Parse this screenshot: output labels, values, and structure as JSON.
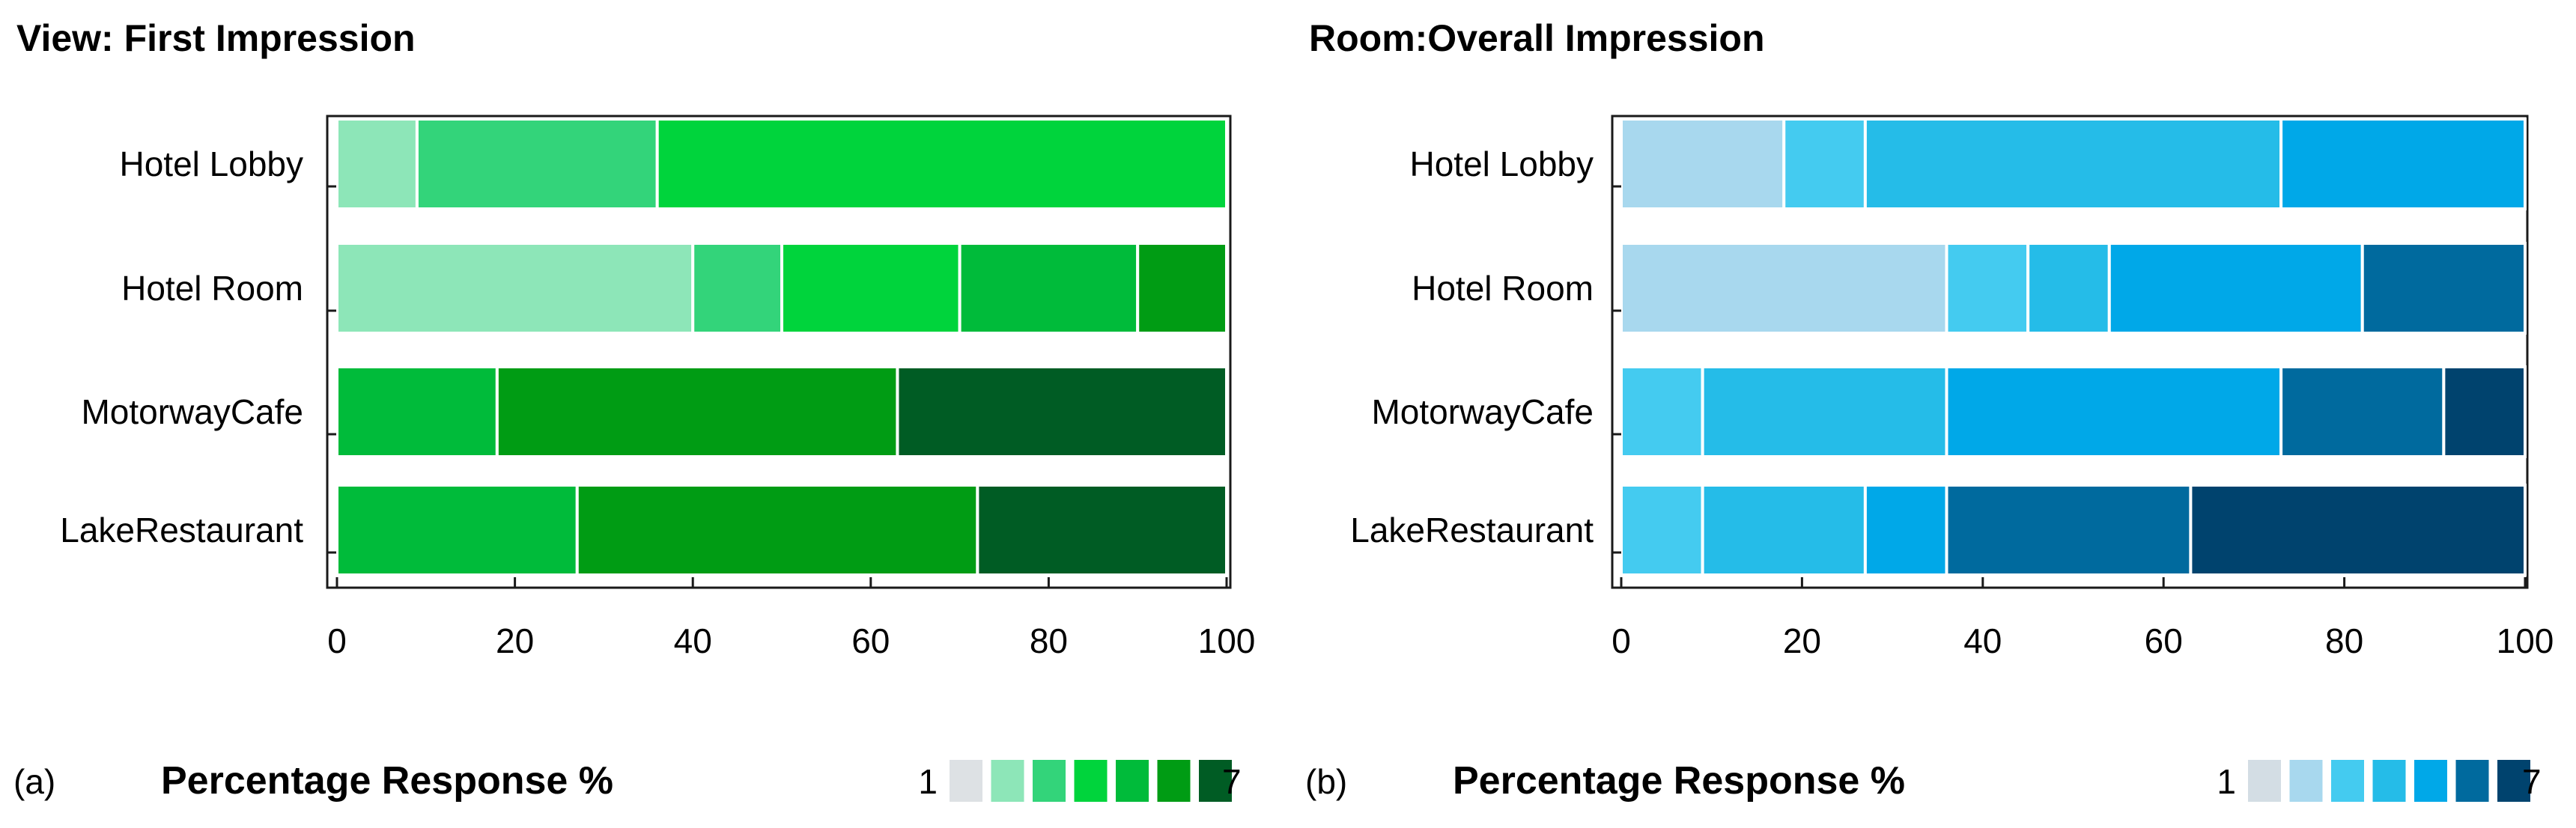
{
  "chart_data": [
    {
      "type": "bar",
      "orientation": "horizontal",
      "stacked": true,
      "title": "View: First Impression",
      "panel_label": "(a)",
      "xlabel": "Percentage Response %",
      "xlim": [
        0,
        100
      ],
      "xticks": [
        "0",
        "20",
        "40",
        "60",
        "80",
        "100"
      ],
      "categories": [
        "Hotel Lobby",
        "Hotel Room",
        "MotorwayCafe",
        "LakeRestaurant"
      ],
      "legend": {
        "low_label": "1",
        "high_label": "7",
        "position": "bottom-right"
      },
      "colors": [
        "#dde1e4",
        "#8de6b8",
        "#33d47a",
        "#00d43c",
        "#00bb3a",
        "#009c14",
        "#005c24"
      ],
      "series": [
        {
          "name": "1",
          "values": [
            0,
            0,
            0,
            0
          ]
        },
        {
          "name": "2",
          "values": [
            9,
            40,
            0,
            0
          ]
        },
        {
          "name": "3",
          "values": [
            27,
            10,
            0,
            0
          ]
        },
        {
          "name": "4",
          "values": [
            64,
            20,
            0,
            0
          ]
        },
        {
          "name": "5",
          "values": [
            0,
            20,
            18,
            27
          ]
        },
        {
          "name": "6",
          "values": [
            0,
            10,
            45,
            45
          ]
        },
        {
          "name": "7",
          "values": [
            0,
            0,
            37,
            28
          ]
        }
      ]
    },
    {
      "type": "bar",
      "orientation": "horizontal",
      "stacked": true,
      "title": "Room:Overall Impression",
      "panel_label": "(b)",
      "xlabel": "Percentage Response %",
      "xlim": [
        0,
        100
      ],
      "xticks": [
        "0",
        "20",
        "40",
        "60",
        "80",
        "100"
      ],
      "categories": [
        "Hotel Lobby",
        "Hotel Room",
        "MotorwayCafe",
        "LakeRestaurant"
      ],
      "legend": {
        "low_label": "1",
        "high_label": "7",
        "position": "bottom-right"
      },
      "colors": [
        "#d3dde4",
        "#a8d8ee",
        "#44cbf0",
        "#25bce8",
        "#00a8e8",
        "#006a9e",
        "#00436e"
      ],
      "series": [
        {
          "name": "1",
          "values": [
            0,
            0,
            0,
            0
          ]
        },
        {
          "name": "2",
          "values": [
            18,
            36,
            0,
            0
          ]
        },
        {
          "name": "3",
          "values": [
            9,
            9,
            9,
            9
          ]
        },
        {
          "name": "4",
          "values": [
            46,
            9,
            27,
            18
          ]
        },
        {
          "name": "5",
          "values": [
            27,
            28,
            37,
            9
          ]
        },
        {
          "name": "6",
          "values": [
            0,
            18,
            18,
            27
          ]
        },
        {
          "name": "7",
          "values": [
            0,
            0,
            9,
            37
          ]
        }
      ]
    }
  ]
}
